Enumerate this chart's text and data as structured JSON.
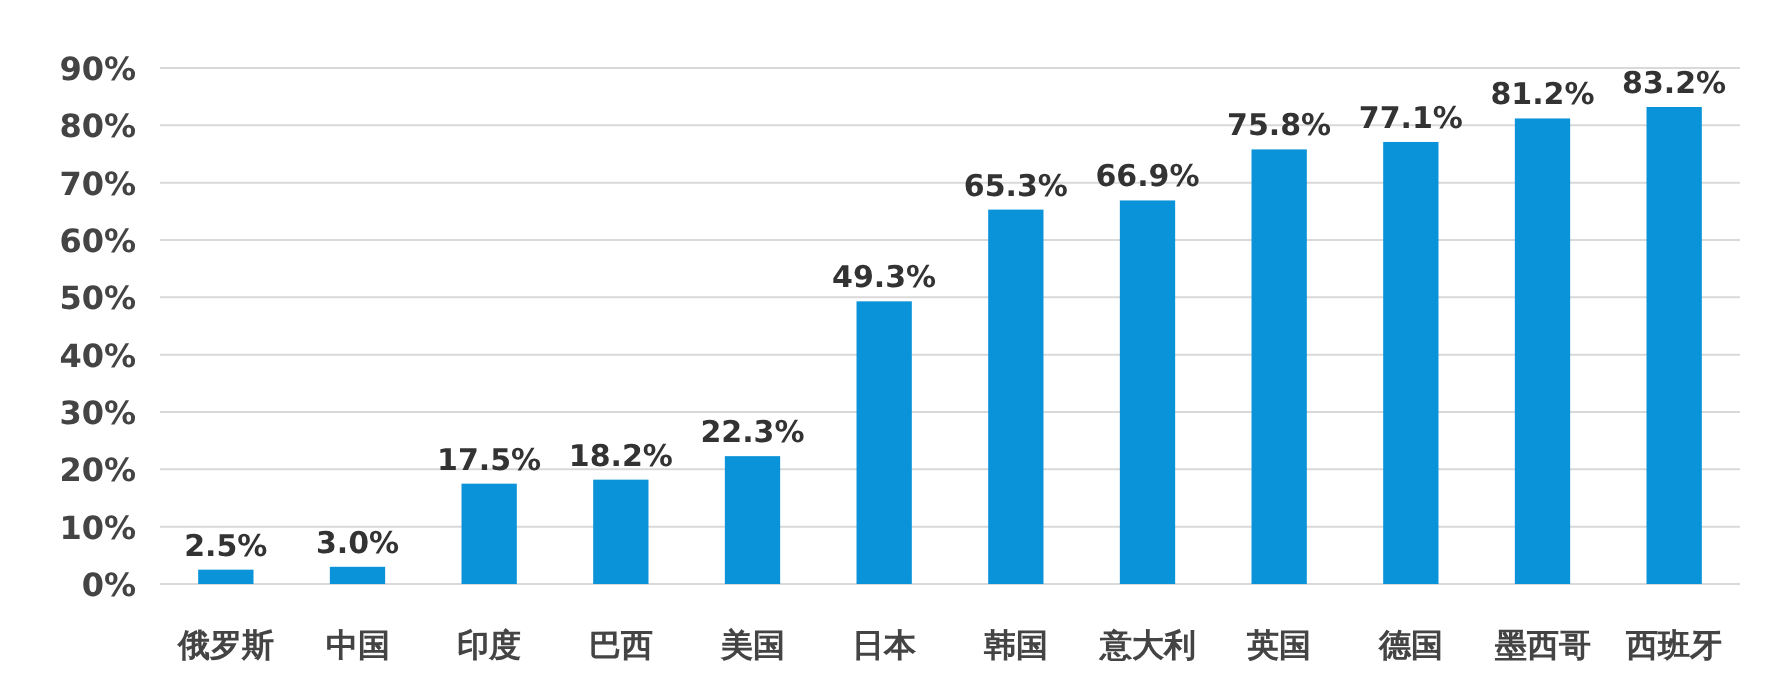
{
  "chart_data": {
    "type": "bar",
    "categories": [
      "俄罗斯",
      "中国",
      "印度",
      "巴西",
      "美国",
      "日本",
      "韩国",
      "意大利",
      "英国",
      "德国",
      "墨西哥",
      "西班牙"
    ],
    "values": [
      2.5,
      3.0,
      17.5,
      18.2,
      22.3,
      49.3,
      65.3,
      66.9,
      75.8,
      77.1,
      81.2,
      83.2
    ],
    "value_labels": [
      "2.5%",
      "3.0%",
      "17.5%",
      "18.2%",
      "22.3%",
      "49.3%",
      "65.3%",
      "66.9%",
      "75.8%",
      "77.1%",
      "81.2%",
      "83.2%"
    ],
    "color": "#0a93d8",
    "ylim": [
      0,
      90
    ],
    "yticks": [
      {
        "value": 0,
        "label": "0%"
      },
      {
        "value": 10,
        "label": "10%"
      },
      {
        "value": 20,
        "label": "20%"
      },
      {
        "value": 30,
        "label": "30%"
      },
      {
        "value": 40,
        "label": "40%"
      },
      {
        "value": 50,
        "label": "50%"
      },
      {
        "value": 60,
        "label": "60%"
      },
      {
        "value": 70,
        "label": "70%"
      },
      {
        "value": 80,
        "label": "80%"
      },
      {
        "value": 90,
        "label": "90%"
      }
    ],
    "grid": "y"
  }
}
